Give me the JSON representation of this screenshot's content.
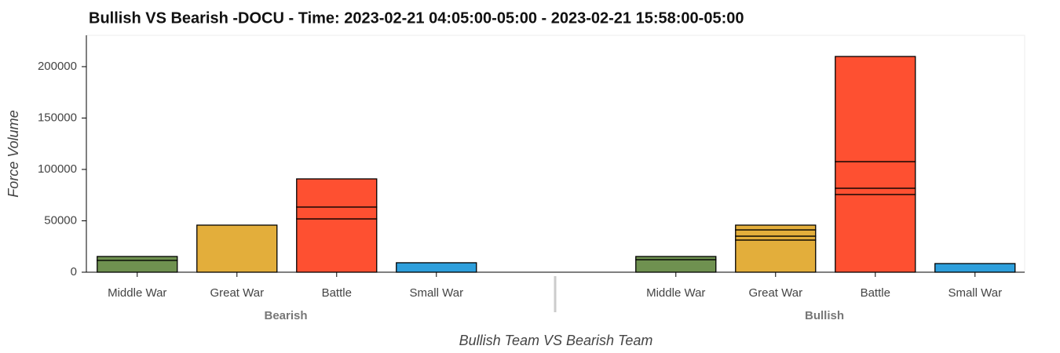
{
  "chart_data": {
    "type": "bar",
    "stacked": true,
    "title": "Bullish VS Bearish -DOCU - Time:  2023-02-21 04:05:00-05:00 - 2023-02-21 15:58:00-05:00",
    "x_label": "Bullish Team VS Bearish Team",
    "y_label": "Force Volume",
    "categories": [
      "Middle War",
      "Great War",
      "Battle",
      "Small War"
    ],
    "colors": [
      "#6f9150",
      "#e3ae3b",
      "#fe5031",
      "#2e9fdc"
    ],
    "groups": [
      {
        "name": "Bearish",
        "segments": [
          [
            11500,
            3800
          ],
          [
            45800
          ],
          [
            51900,
            11500,
            27400
          ],
          [
            9200
          ]
        ]
      },
      {
        "name": "Bullish",
        "segments": [
          [
            12200,
            3100
          ],
          [
            31300,
            3800,
            6100,
            4600
          ],
          [
            75600,
            6100,
            25900,
            102300
          ],
          [
            8400
          ]
        ]
      }
    ],
    "ylim": [
      0,
      230500
    ],
    "yticks": [
      0,
      50000,
      100000,
      150000,
      200000
    ]
  }
}
